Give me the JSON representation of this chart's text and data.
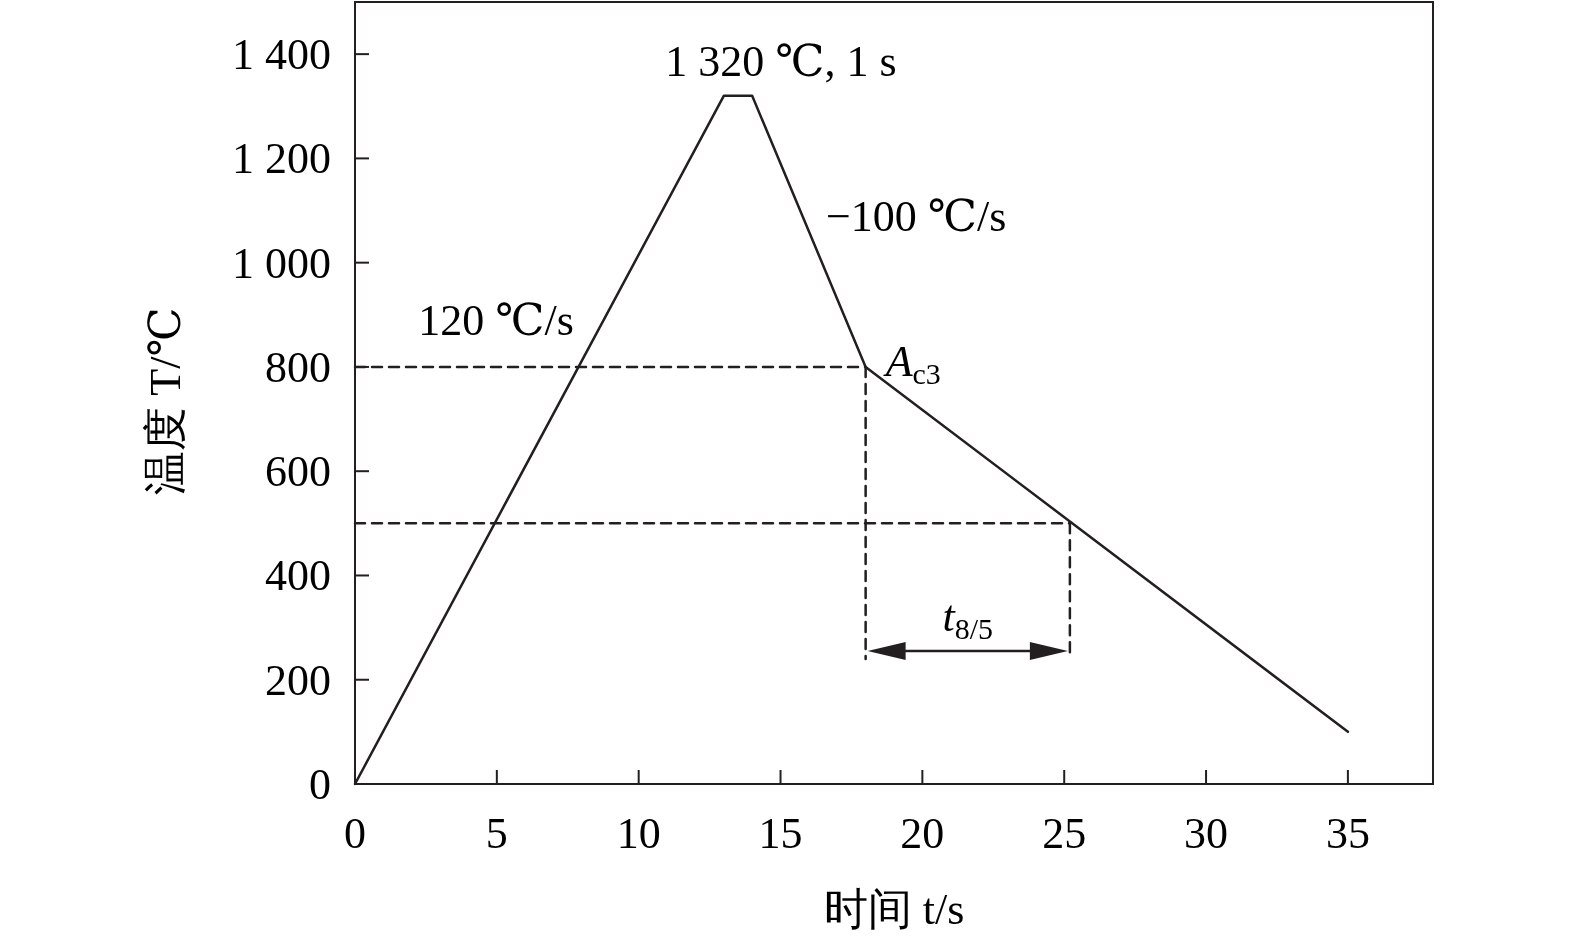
{
  "chart_data": {
    "type": "line",
    "xlabel": "时间 t/s",
    "ylabel": "温度 T/℃",
    "xlim": [
      0,
      38
    ],
    "ylim": [
      0,
      1500
    ],
    "xticks": [
      0,
      5,
      10,
      15,
      20,
      25,
      30,
      35
    ],
    "yticks": [
      0,
      200,
      400,
      600,
      800,
      {
        "value": 1000,
        "label": "1 000"
      },
      {
        "value": 1200,
        "label": "1 200"
      },
      {
        "value": 1400,
        "label": "1 400"
      }
    ],
    "grid": false,
    "marker": "none",
    "series": [
      {
        "color": "#231f20",
        "x": [
          0,
          13,
          14,
          18,
          35
        ],
        "values": [
          0,
          1320,
          1320,
          800,
          100
        ],
        "line_style": "solid"
      },
      {
        "color": "#231f20",
        "x": [
          0,
          18
        ],
        "values": [
          800,
          800
        ],
        "line_style": "dashed"
      },
      {
        "color": "#231f20",
        "x": [
          0,
          25.2
        ],
        "values": [
          500,
          500
        ],
        "line_style": "dashed"
      },
      {
        "color": "#231f20",
        "x": [
          18,
          18
        ],
        "values": [
          800,
          240
        ],
        "line_style": "dashed"
      },
      {
        "color": "#231f20",
        "x": [
          25.2,
          25.2
        ],
        "values": [
          500,
          240
        ],
        "line_style": "dashed"
      }
    ],
    "annotations": [
      {
        "text": "1 320 ℃, 1 s",
        "x": 13.5,
        "y": 1320
      },
      {
        "text": "−100 ℃/s",
        "x": 16,
        "y": 1060
      },
      {
        "text": "120 ℃/s",
        "x": 8,
        "y": 812
      },
      {
        "text": "A$_{c3}$",
        "x": 18,
        "y": 800
      },
      "t$_{8/5}$"
    ]
  }
}
